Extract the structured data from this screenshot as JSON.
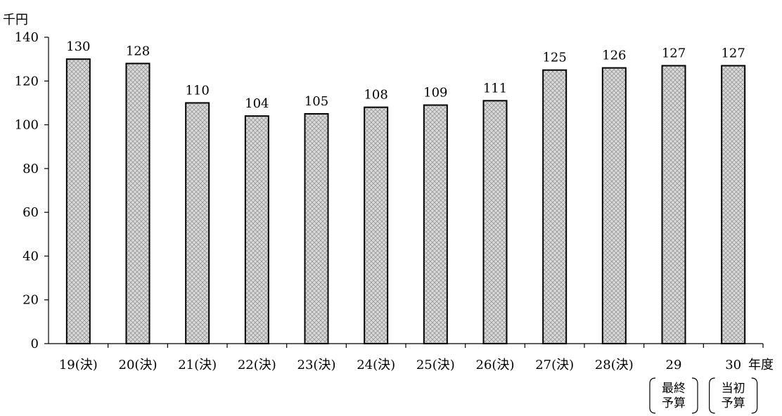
{
  "chart_data": {
    "type": "bar",
    "title": "",
    "ylabel": "千円",
    "xlabel": "年度",
    "ylim": [
      0,
      140
    ],
    "yticks": [
      0,
      20,
      40,
      60,
      80,
      100,
      120,
      140
    ],
    "categories": [
      "19(決)",
      "20(決)",
      "21(決)",
      "22(決)",
      "23(決)",
      "24(決)",
      "25(決)",
      "26(決)",
      "27(決)",
      "28(決)",
      "29",
      "30"
    ],
    "category_notes": [
      "",
      "",
      "",
      "",
      "",
      "",
      "",
      "",
      "",
      "",
      "最終\n予算",
      "当初\n予算"
    ],
    "values": [
      130,
      128,
      110,
      104,
      105,
      108,
      109,
      111,
      125,
      126,
      127,
      127
    ],
    "grid": false,
    "bar_fill": "#d8d8d8",
    "bar_pattern": "crosshatch",
    "bar_stroke": "#000000"
  }
}
